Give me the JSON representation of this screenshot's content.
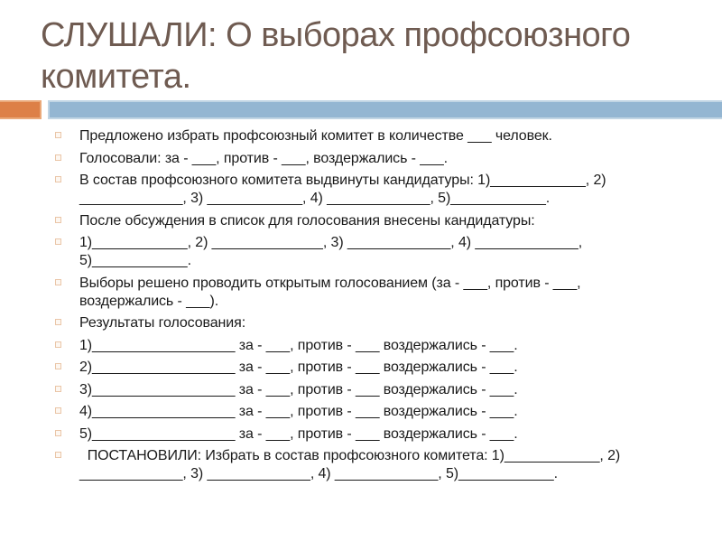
{
  "title": {
    "text": "СЛУШАЛИ: О выборах профсоюзного\nкомитета."
  },
  "theme": {
    "accent_orange": "#dd8047",
    "accent_blue": "#94b6d2",
    "title_color": "#6f5b51",
    "body_color": "#1a1a1a",
    "bullet_outline": "#eac6a8"
  },
  "content": {
    "items": [
      "Предложено избрать профсоюзный комитет в количестве ___ человек.",
      "Голосовали: за - ___, против - ___, воздержались - ___.",
      "В состав профсоюзного комитета выдвинуты кандидатуры: 1)____________, 2)\n_____________, 3) ____________, 4) _____________, 5)____________.",
      "После обсуждения в список для голосования внесены кандидатуры:",
      "1)____________, 2) ______________, 3) _____________, 4) _____________,\n5)____________.",
      "Выборы решено проводить открытым голосованием (за - ___, против - ___,\nвоздержались - ___).",
      "Результаты голосования:",
      "1)__________________ за - ___, против - ___ воздержались - ___.",
      "2)__________________ за - ___, против - ___ воздержались - ___.",
      "3)__________________ за - ___, против - ___ воздержались - ___.",
      "4)__________________ за - ___, против - ___ воздержались - ___.",
      "5)__________________ за - ___, против - ___ воздержались - ___.",
      "  ПОСТАНОВИЛИ: Избрать в состав профсоюзного комитета: 1)____________, 2)\n_____________, 3) _____________, 4) _____________, 5)____________."
    ]
  }
}
